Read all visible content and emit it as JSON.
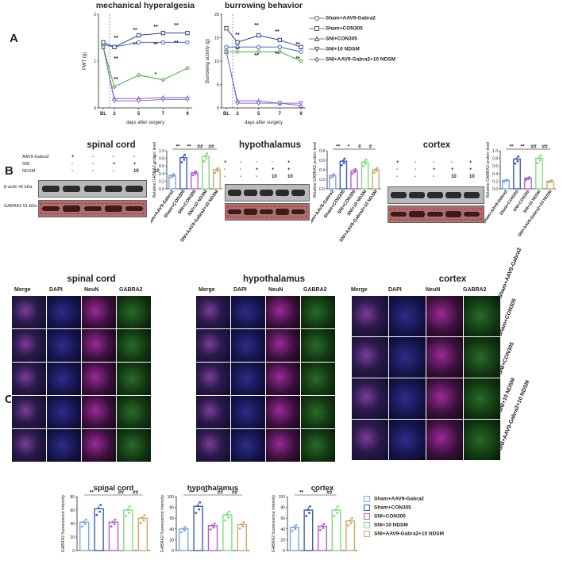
{
  "panel_letters": {
    "a": "A",
    "b": "B",
    "c": "C"
  },
  "legend": [
    {
      "label": "Sham+AAV9-Gabra2",
      "marker": "circle",
      "color": "#555555"
    },
    {
      "label": "Sham+CON305",
      "marker": "square",
      "color": "#555555"
    },
    {
      "label": "SNI+CON305",
      "marker": "triangle-up",
      "color": "#555555"
    },
    {
      "label": "SNI+10 NDSM",
      "marker": "triangle-down",
      "color": "#555555"
    },
    {
      "label": "SNI+AAV9-Gabra2+10 NDSM",
      "marker": "diamond",
      "color": "#555555"
    }
  ],
  "legend_c": [
    {
      "label": "Sham+AAV9-Gabra2",
      "color": "#7fa6e0"
    },
    {
      "label": "Sham+CON305",
      "color": "#3d5db8"
    },
    {
      "label": "SNI+CON305",
      "color": "#b65fd0"
    },
    {
      "label": "SNI+10 NDSM",
      "color": "#7ddc7d"
    },
    {
      "label": "SNI+AAV9-Gabra2+10 NDSM",
      "color": "#c9a96a"
    }
  ],
  "chart_data": [
    {
      "type": "line",
      "title": "mechanical hyperalgesia",
      "xlabel": "days after surgery",
      "ylabel": "PWT (g)",
      "x": [
        "BL",
        "2",
        "5",
        "7",
        "9"
      ],
      "ylim": [
        0,
        2
      ],
      "yticks": [
        "0",
        "1",
        "2"
      ],
      "series": [
        {
          "name": "Sham+AAV9-Gabra2",
          "color": "#4466cc",
          "values": [
            1.35,
            1.3,
            1.4,
            1.4,
            1.4
          ]
        },
        {
          "name": "Sham+CON305",
          "color": "#334488",
          "values": [
            1.4,
            1.3,
            1.55,
            1.6,
            1.6
          ]
        },
        {
          "name": "SNI+CON305",
          "color": "#aa55cc",
          "values": [
            1.3,
            0.2,
            0.2,
            0.22,
            0.22
          ]
        },
        {
          "name": "SNI+10 NDSM",
          "color": "#7a7acc",
          "values": [
            1.3,
            0.15,
            0.15,
            0.18,
            0.18
          ]
        },
        {
          "name": "SNI+AAV9-Gabra2+10 NDSM",
          "color": "#44aa44",
          "values": [
            1.3,
            0.45,
            0.7,
            0.6,
            0.85
          ]
        }
      ],
      "annotations": [
        "**",
        "**",
        "**",
        "**",
        "**",
        "**",
        "**",
        "**",
        "*",
        "**"
      ]
    },
    {
      "type": "line",
      "title": "burrowing behavior",
      "xlabel": "days after surgery",
      "ylabel": "Burrowing activity (g)",
      "x": [
        "BL",
        "2",
        "5",
        "7",
        "9"
      ],
      "ylim": [
        0,
        20
      ],
      "yticks": [
        "0",
        "5",
        "10",
        "15",
        "20"
      ],
      "series": [
        {
          "name": "Sham+AAV9-Gabra2",
          "color": "#4466cc",
          "values": [
            13,
            13,
            13,
            13,
            12
          ]
        },
        {
          "name": "Sham+CON305",
          "color": "#334488",
          "values": [
            17,
            14,
            15.5,
            14.5,
            13
          ]
        },
        {
          "name": "SNI+CON305",
          "color": "#aa55cc",
          "values": [
            12,
            1.5,
            1.5,
            1,
            0.5
          ]
        },
        {
          "name": "SNI+10 NDSM",
          "color": "#7a7acc",
          "values": [
            12,
            1,
            1,
            1,
            1
          ]
        },
        {
          "name": "SNI+AAV9-Gabra2+10 NDSM",
          "color": "#44aa44",
          "values": [
            12,
            12,
            12,
            12,
            10
          ]
        }
      ]
    },
    {
      "type": "bar",
      "title": "spinal cord",
      "ylabel": "Relative GABRA2 protein level",
      "categories": [
        "Sham+AAV9-Gabra2",
        "Sham+CON305",
        "SNI+CON305",
        "SNI+10 NDSM",
        "SNI+AAV9-Gabra2+10 NDSM"
      ],
      "values": [
        0.35,
        0.82,
        0.42,
        0.85,
        0.5
      ],
      "ylim": [
        0,
        1
      ],
      "yticks": [
        "0.0",
        "0.2",
        "0.4",
        "0.6",
        "0.8",
        "1.0"
      ],
      "sig": [
        "**",
        "**",
        "##",
        "##"
      ]
    },
    {
      "type": "bar",
      "title": "hypothalamus",
      "ylabel": "Relative GABRA2 protein level",
      "categories": [
        "Sham+AAV9-Gabra2",
        "Sham+CON305",
        "SNI+CON305",
        "SNI+10 NDSM",
        "SNI+AAV9-Gabra2+10 NDSM"
      ],
      "values": [
        0.28,
        0.58,
        0.38,
        0.56,
        0.4
      ],
      "ylim": [
        0,
        0.8
      ],
      "yticks": [
        "0.0",
        "0.2",
        "0.4",
        "0.6",
        "0.8"
      ],
      "sig": [
        "**",
        "*",
        "#",
        "#"
      ]
    },
    {
      "type": "bar",
      "title": "cortex",
      "ylabel": "Relative GABRA2 protein level",
      "categories": [
        "Sham+AAV9-Gabra2",
        "Sham+CON305",
        "SNI+CON305",
        "SNI+10 NDSM",
        "SNI+AAV9-Gabra2+10 NDSM"
      ],
      "values": [
        0.22,
        0.78,
        0.28,
        0.8,
        0.2
      ],
      "ylim": [
        0,
        1
      ],
      "yticks": [
        "0.0",
        "0.2",
        "0.4",
        "0.6",
        "0.8",
        "1.0"
      ],
      "sig": [
        "**",
        "**",
        "##",
        "##"
      ]
    },
    {
      "type": "bar",
      "title": "spinal cord",
      "ylabel": "GABRA2 fluorescence intensity",
      "categories": [
        "Sham+AAV9-Gabra2",
        "Sham+CON305",
        "SNI+CON305",
        "SNI+10 NDSM",
        "SNI+AAV9-Gabra2+10 NDSM"
      ],
      "values": [
        42,
        62,
        42,
        60,
        48
      ],
      "ylim": [
        0,
        80
      ],
      "yticks": [
        "0",
        "20",
        "40",
        "60",
        "80"
      ],
      "sig": [
        "**",
        "**",
        "##",
        "##"
      ]
    },
    {
      "type": "bar",
      "title": "hypothalamus",
      "ylabel": "GABRA2 fluorescence intensity",
      "categories": [
        "Sham+AAV9-Gabra2",
        "Sham+CON305",
        "SNI+CON305",
        "SNI+10 NDSM",
        "SNI+AAV9-Gabra2+10 NDSM"
      ],
      "values": [
        40,
        82,
        46,
        66,
        48
      ],
      "ylim": [
        0,
        100
      ],
      "yticks": [
        "0",
        "20",
        "40",
        "60",
        "80",
        "100"
      ],
      "sig": [
        "**",
        "**",
        "##",
        "##"
      ]
    },
    {
      "type": "bar",
      "title": "cortex",
      "ylabel": "GABRA2 fluorescence intensity",
      "categories": [
        "Sham+AAV9-Gabra2",
        "Sham+CON305",
        "SNI+CON305",
        "SNI+10 NDSM",
        "SNI+AAV9-Gabra2+10 NDSM"
      ],
      "values": [
        43,
        75,
        45,
        75,
        55
      ],
      "ylim": [
        0,
        100
      ],
      "yticks": [
        "0",
        "20",
        "40",
        "60",
        "80",
        "100"
      ],
      "sig": [
        "**",
        "**",
        "##"
      ]
    }
  ],
  "western": {
    "treatment_labels": [
      "AAV9-Gabra2",
      "SNI",
      "NDSM"
    ],
    "treatment_rows": [
      [
        "+",
        "-",
        "-",
        "-",
        "+"
      ],
      [
        "-",
        "-",
        "+",
        "+",
        "+"
      ],
      [
        "-",
        "-",
        "-",
        "10",
        "10"
      ]
    ],
    "bands": [
      "β-actin 42 kDa",
      "GABRA2 51 kDa"
    ]
  },
  "micrographs": {
    "columns": [
      "Merge",
      "DAPI",
      "NeuN",
      "GABRA2"
    ],
    "rows": [
      "Sham+AAV9-Gabra2",
      "Sham+CON305",
      "SNI+CON305",
      "SNI+10 NDSM",
      "SNI+AAV9-Gabra2+10 NDSM"
    ],
    "tissue_titles": [
      "spinal cord",
      "hypothalamus",
      "cortex"
    ]
  }
}
